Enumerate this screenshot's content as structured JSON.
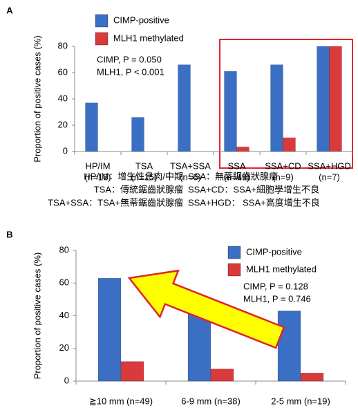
{
  "chart_data": [
    {
      "type": "bar",
      "panel": "A",
      "y_label": "Proportion of positive cases (%)",
      "categories": [
        "HP/IM",
        "TSA",
        "TSA+SSA",
        "SSA",
        "SSA+CD",
        "SSA+HGD"
      ],
      "category_counts": [
        "(n=16)",
        "(n=15)",
        "(n=6)",
        "(n=49)",
        "(n=9)",
        "(n=7)"
      ],
      "series": [
        {
          "name": "CIMP-positive",
          "color": "#3b6fc3",
          "values": [
            37,
            26,
            66,
            61,
            66,
            80
          ]
        },
        {
          "name": "MLH1 methylated",
          "color": "#d93a3c",
          "values": [
            0,
            0,
            0,
            3.5,
            10.5,
            80
          ]
        }
      ],
      "ylim": [
        0,
        80
      ],
      "yticks": [
        0,
        20,
        40,
        60,
        80
      ],
      "annotations": [
        "CIMP, P = 0.050",
        "MLH1, P < 0.001"
      ],
      "notes": [
        [
          "HP/IM：增生性息肉/中期",
          "SSA：無蒂鋸齒狀腺瘤"
        ],
        [
          "TSA：傳統鋸齒狀腺瘤",
          "SSA+CD：SSA+細胞學增生不良"
        ],
        [
          "TSA+SSA：TSA+無蒂鋸齒狀腺瘤",
          "SSA+HGD： SSA+高度增生不良"
        ]
      ]
    },
    {
      "type": "bar",
      "panel": "B",
      "y_label": "Proportion of positive cases (%)",
      "categories": [
        "≧10 mm (n=49)",
        "6-9 mm (n=38)",
        "2-5 mm (n=19)"
      ],
      "series": [
        {
          "name": "CIMP-positive",
          "color": "#3b6fc3",
          "values": [
            63,
            50,
            43
          ]
        },
        {
          "name": "MLH1 methylated",
          "color": "#d93a3c",
          "values": [
            12,
            7.5,
            5
          ]
        }
      ],
      "ylim": [
        0,
        80
      ],
      "yticks": [
        0,
        20,
        40,
        60,
        80
      ],
      "annotations": [
        "CIMP, P = 0.128",
        "MLH1, P = 0.746"
      ]
    }
  ]
}
